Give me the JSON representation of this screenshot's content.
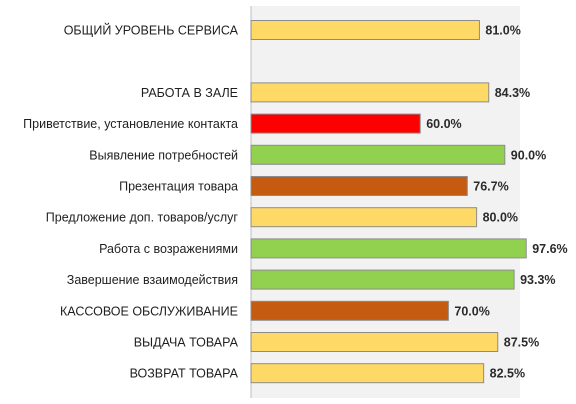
{
  "chart_data": {
    "type": "bar",
    "orientation": "horizontal",
    "title": "",
    "xlabel": "",
    "ylabel": "",
    "xlim": [
      0,
      100
    ],
    "grid": false,
    "legend": "none",
    "categories": [
      "ОБЩИЙ УРОВЕНЬ СЕРВИСА",
      "",
      "РАБОТА В ЗАЛЕ",
      "Приветствие, установление контакта",
      "Выявление потребностей",
      "Презентация товара",
      "Предложение доп. товаров/услуг",
      "Работа с возражениями",
      "Завершение взаимодействия",
      "КАССОВОЕ ОБСЛУЖИВАНИЕ",
      "ВЫДАЧА ТОВАРА",
      "ВОЗВРАТ ТОВАРА"
    ],
    "values": [
      81.0,
      null,
      84.3,
      60.0,
      90.0,
      76.7,
      80.0,
      97.6,
      93.3,
      70.0,
      87.5,
      82.5
    ],
    "value_labels": [
      "81.0%",
      "",
      "84.3%",
      "60.0%",
      "90.0%",
      "76.7%",
      "80.0%",
      "97.6%",
      "93.3%",
      "70.0%",
      "87.5%",
      "82.5%"
    ],
    "bar_colors": [
      "#FFD966",
      null,
      "#FFD966",
      "#FF0000",
      "#92D050",
      "#C55A11",
      "#FFD966",
      "#92D050",
      "#92D050",
      "#C55A11",
      "#FFD966",
      "#FFD966"
    ],
    "colors": {
      "bar_border": "#8c8c8c",
      "plot_background": "#f2f2f2",
      "axis_line": "#bfbfbf"
    }
  }
}
